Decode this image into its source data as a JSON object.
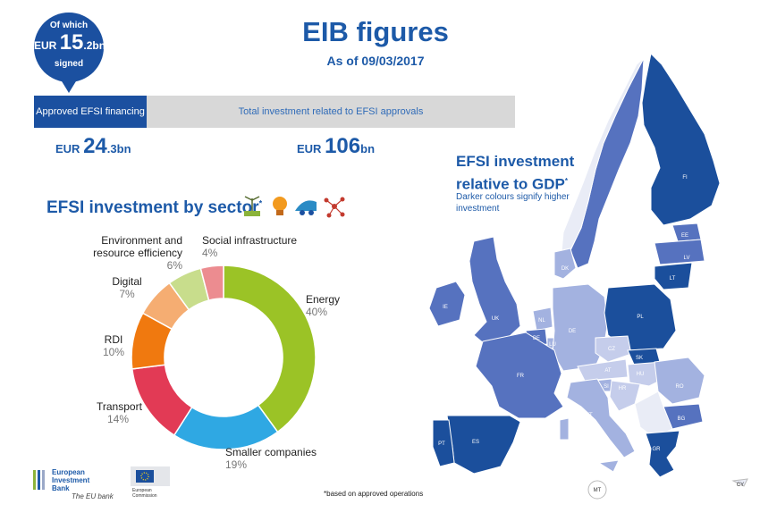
{
  "header": {
    "title": "EIB figures",
    "as_of": "As of 09/03/2017"
  },
  "signed": {
    "line1": "Of which",
    "currency": "EUR",
    "value_int": "15",
    "value_dec": ".2bn",
    "line3": "signed"
  },
  "bar": {
    "approved_label": "Approved EFSI financing",
    "total_label": "Total investment related to EFSI approvals"
  },
  "amounts": {
    "approved": {
      "currency": "EUR",
      "value_int": "24",
      "value_dec": ".3bn"
    },
    "total": {
      "currency": "EUR",
      "value_int": "106",
      "value_dec": "bn"
    }
  },
  "sector": {
    "title": "EFSI investment by sector",
    "title_sup": "*"
  },
  "chart_data": {
    "type": "pie",
    "title": "EFSI investment by sector",
    "categories": [
      "Energy",
      "Smaller companies",
      "Transport",
      "RDI",
      "Digital",
      "Environment and resource efficiency",
      "Social infrastructure"
    ],
    "values": [
      40,
      19,
      14,
      10,
      7,
      6,
      4
    ],
    "value_labels": [
      "40%",
      "19%",
      "14%",
      "10%",
      "7%",
      "6%",
      "4%"
    ],
    "colors": [
      "#9bc326",
      "#2fa8e3",
      "#e23a55",
      "#f0790f",
      "#f5ad72",
      "#c8dd8c",
      "#ec8c90"
    ]
  },
  "map": {
    "title_line1": "EFSI investment",
    "title_line2": "relative to GDP",
    "title_sup": "*",
    "subtitle": "Darker colours signify higher investment",
    "countries": [
      "FI",
      "SE",
      "EE",
      "LV",
      "LT",
      "DK",
      "IE",
      "UK",
      "NL",
      "BE",
      "LU",
      "DE",
      "PL",
      "CZ",
      "SK",
      "FR",
      "AT",
      "HU",
      "SI",
      "HR",
      "RO",
      "IT",
      "BG",
      "PT",
      "ES",
      "GR",
      "MT",
      "CY"
    ],
    "colors": {
      "dark": "#1b4f9c",
      "mid": "#5672bf",
      "light": "#a3b2e0",
      "lighter": "#c5cdeb"
    }
  },
  "footnote": "*based on approved operations",
  "logos": {
    "eib_line1": "European",
    "eib_line2": "Investment",
    "eib_line3": "Bank",
    "eib_tag": "The EU bank",
    "ec_line1": "European",
    "ec_line2": "Commission"
  }
}
